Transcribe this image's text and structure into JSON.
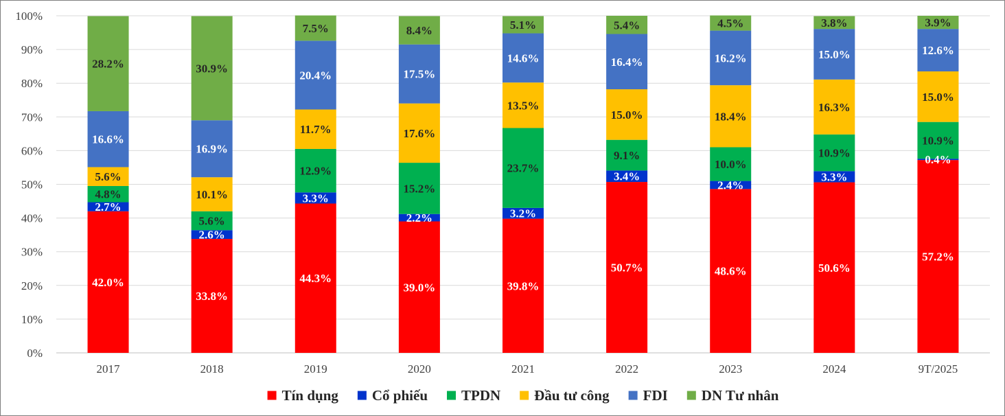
{
  "chart_data": {
    "type": "bar",
    "stacked": true,
    "title": "",
    "xlabel": "",
    "ylabel": "",
    "ylim": [
      0,
      100
    ],
    "yticks": [
      0,
      10,
      20,
      30,
      40,
      50,
      60,
      70,
      80,
      90,
      100
    ],
    "ytick_labels": [
      "0%",
      "10%",
      "20%",
      "30%",
      "40%",
      "50%",
      "60%",
      "70%",
      "80%",
      "90%",
      "100%"
    ],
    "grid": "horizontal",
    "legend_position": "bottom",
    "categories": [
      "2017",
      "2018",
      "2019",
      "2020",
      "2021",
      "2022",
      "2023",
      "2024",
      "9T/2025"
    ],
    "series": [
      {
        "name": "Tín dụng",
        "color": "#ff0000",
        "label_color": "#ffffff",
        "values": [
          42.0,
          33.8,
          44.3,
          39.0,
          39.8,
          50.7,
          48.6,
          50.6,
          57.2
        ],
        "labels": [
          "42.0%",
          "33.8%",
          "44.3%",
          "39.0%",
          "39.8%",
          "50.7%",
          "48.6%",
          "50.6%",
          "57.2%"
        ]
      },
      {
        "name": "Cổ phiếu",
        "color": "#0033cc",
        "label_color": "#ffffff",
        "values": [
          2.7,
          2.6,
          3.3,
          2.2,
          3.2,
          3.4,
          2.4,
          3.3,
          0.4
        ],
        "labels": [
          "2.7%",
          "2.6%",
          "3.3%",
          "2.2%",
          "3.2%",
          "3.4%",
          "2.4%",
          "3.3%",
          "0.4%"
        ]
      },
      {
        "name": "TPDN",
        "color": "#00b050",
        "label_color": "#262626",
        "values": [
          4.8,
          5.6,
          12.9,
          15.2,
          23.7,
          9.1,
          10.0,
          10.9,
          10.9
        ],
        "labels": [
          "4.8%",
          "5.6%",
          "12.9%",
          "15.2%",
          "23.7%",
          "9.1%",
          "10.0%",
          "10.9%",
          "10.9%"
        ]
      },
      {
        "name": "Đầu tư công",
        "color": "#ffc000",
        "label_color": "#262626",
        "values": [
          5.6,
          10.1,
          11.7,
          17.6,
          13.5,
          15.0,
          18.4,
          16.3,
          15.0
        ],
        "labels": [
          "5.6%",
          "10.1%",
          "11.7%",
          "17.6%",
          "13.5%",
          "15.0%",
          "18.4%",
          "16.3%",
          "15.0%"
        ]
      },
      {
        "name": "FDI",
        "color": "#4472c4",
        "label_color": "#ffffff",
        "values": [
          16.6,
          16.9,
          20.4,
          17.5,
          14.6,
          16.4,
          16.2,
          15.0,
          12.6
        ],
        "labels": [
          "16.6%",
          "16.9%",
          "20.4%",
          "17.5%",
          "14.6%",
          "16.4%",
          "16.2%",
          "15.0%",
          "12.6%"
        ]
      },
      {
        "name": "DN Tư nhân",
        "color": "#70ad47",
        "label_color": "#262626",
        "values": [
          28.2,
          30.9,
          7.5,
          8.4,
          5.1,
          5.4,
          4.5,
          3.8,
          3.9
        ],
        "labels": [
          "28.2%",
          "30.9%",
          "7.5%",
          "8.4%",
          "5.1%",
          "5.4%",
          "4.5%",
          "3.8%",
          "3.9%"
        ]
      }
    ]
  }
}
